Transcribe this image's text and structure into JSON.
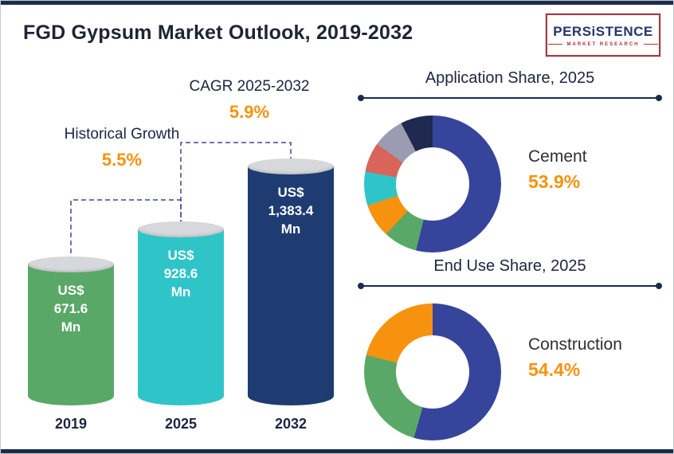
{
  "header": {
    "title": "FGD Gypsum Market Outlook, 2019-2032",
    "logo": {
      "brand": "PERSiSTENCE",
      "tagline": "MARKET RESEARCH"
    }
  },
  "colors": {
    "accent_orange": "#f6920e",
    "navy_text": "#1c2541",
    "edge_navy": "#1c2b4a",
    "donut_blue": "#36459b"
  },
  "chart_data": [
    {
      "type": "bar",
      "title": "FGD Gypsum Market Outlook, 2019-2032",
      "categories": [
        "2019",
        "2025",
        "2032"
      ],
      "values": [
        671.6,
        928.6,
        1383.4
      ],
      "unit": "US$ Mn",
      "bars": [
        {
          "year": "2019",
          "value": 671.6,
          "color": "#5aa868",
          "label_lines": [
            "US$",
            "671.6",
            "Mn"
          ]
        },
        {
          "year": "2025",
          "value": 928.6,
          "color": "#2fc5c8",
          "label_lines": [
            "US$",
            "928.6",
            "Mn"
          ]
        },
        {
          "year": "2032",
          "value": 1383.4,
          "color": "#1e3c72",
          "label_lines": [
            "US$",
            "1,383.4",
            "Mn"
          ]
        }
      ],
      "annotations": [
        {
          "label": "Historical Growth",
          "value": "5.5%"
        },
        {
          "label": "CAGR 2025-2032",
          "value": "5.9%"
        }
      ]
    },
    {
      "type": "pie",
      "title": "Application Share, 2025",
      "highlight": {
        "label": "Cement",
        "value": "53.9%"
      },
      "legend_position": "none",
      "slices": [
        {
          "label": "Cement",
          "value": 53.9,
          "color": "#36459b"
        },
        {
          "label": "",
          "value": 8,
          "color": "#5aa868"
        },
        {
          "label": "",
          "value": 8,
          "color": "#f6920e"
        },
        {
          "label": "",
          "value": 8,
          "color": "#2fc5c8"
        },
        {
          "label": "",
          "value": 7,
          "color": "#d96459"
        },
        {
          "label": "",
          "value": 7.5,
          "color": "#9b9bb1"
        },
        {
          "label": "",
          "value": 7.6,
          "color": "#20294f"
        }
      ]
    },
    {
      "type": "pie",
      "title": "End Use Share, 2025",
      "highlight": {
        "label": "Construction",
        "value": "54.4%"
      },
      "legend_position": "none",
      "slices": [
        {
          "label": "Construction",
          "value": 54.4,
          "color": "#36459b"
        },
        {
          "label": "",
          "value": 24.6,
          "color": "#5aa868"
        },
        {
          "label": "",
          "value": 21,
          "color": "#f6920e"
        }
      ]
    }
  ]
}
